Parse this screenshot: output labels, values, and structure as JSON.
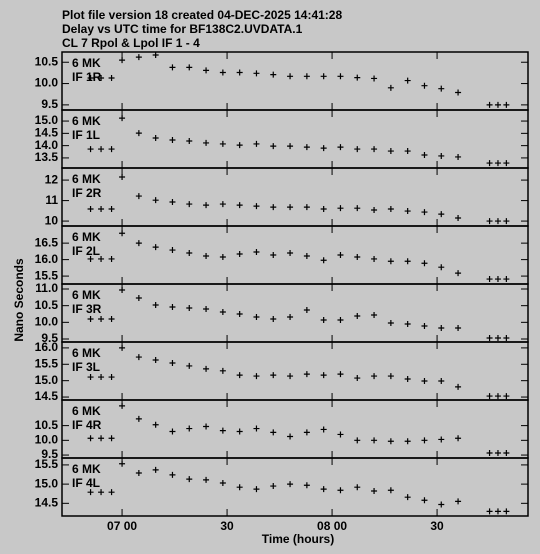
{
  "header": [
    "Plot file version 18  created 04-DEC-2025 14:41:28",
    "Delay vs UTC time for BF138C2.UVDATA.1",
    "CL 7  Rpol & Lpol  IF 1 - 4"
  ],
  "ylabel": "Nano Seconds",
  "xlabel": "Time (hours)",
  "xlim": [
    6.714,
    8.933
  ],
  "xticks": [
    {
      "value": 7.0,
      "label": "07 00"
    },
    {
      "value": 7.5,
      "label": "30"
    },
    {
      "value": 8.0,
      "label": "08 00"
    },
    {
      "value": 8.5,
      "label": "30"
    }
  ],
  "chart_data": [
    {
      "type": "scatter",
      "station": "6 MK",
      "label": "IF 1R",
      "color": "#000000",
      "x": [
        6.85,
        6.9,
        6.95,
        7.0,
        7.08,
        7.16,
        7.24,
        7.32,
        7.4,
        7.48,
        7.56,
        7.64,
        7.72,
        7.8,
        7.88,
        7.96,
        8.04,
        8.12,
        8.2,
        8.28,
        8.36,
        8.44,
        8.52,
        8.6,
        8.75,
        8.79,
        8.83
      ],
      "values": [
        10.13,
        10.13,
        10.13,
        10.55,
        10.62,
        10.67,
        10.38,
        10.38,
        10.31,
        10.26,
        10.26,
        10.24,
        10.21,
        10.17,
        10.17,
        10.17,
        10.17,
        10.14,
        10.12,
        9.9,
        10.07,
        9.95,
        9.88,
        9.79,
        9.5,
        9.5,
        9.5
      ],
      "ylim": [
        9.38,
        10.74
      ],
      "yticks": [
        10.5,
        {
          "value": 10.0,
          "label": "10.0"
        },
        9.5
      ]
    },
    {
      "type": "scatter",
      "station": "6 MK",
      "label": "IF 1L",
      "color": "#000000",
      "x": [
        6.85,
        6.9,
        6.95,
        7.0,
        7.08,
        7.16,
        7.24,
        7.32,
        7.4,
        7.48,
        7.56,
        7.64,
        7.72,
        7.8,
        7.88,
        7.96,
        8.04,
        8.12,
        8.2,
        8.28,
        8.36,
        8.44,
        8.52,
        8.6,
        8.75,
        8.79,
        8.83
      ],
      "values": [
        13.86,
        13.86,
        13.86,
        15.12,
        14.51,
        14.31,
        14.23,
        14.19,
        14.11,
        14.07,
        14.02,
        14.07,
        13.98,
        13.98,
        13.94,
        13.9,
        13.94,
        13.86,
        13.86,
        13.78,
        13.78,
        13.62,
        13.58,
        13.54,
        13.29,
        13.29,
        13.29
      ],
      "ylim": [
        13.09,
        15.45
      ],
      "yticks": [
        {
          "value": 15.0,
          "label": "15.0"
        },
        14.5,
        {
          "value": 14.0,
          "label": "14.0"
        },
        13.5
      ]
    },
    {
      "type": "scatter",
      "station": "6 MK",
      "label": "IF 2R",
      "color": "#000000",
      "x": [
        6.85,
        6.9,
        6.95,
        7.0,
        7.08,
        7.16,
        7.24,
        7.32,
        7.4,
        7.48,
        7.56,
        7.64,
        7.72,
        7.8,
        7.88,
        7.96,
        8.04,
        8.12,
        8.2,
        8.28,
        8.36,
        8.44,
        8.52,
        8.6,
        8.75,
        8.79,
        8.83
      ],
      "values": [
        10.59,
        10.59,
        10.59,
        12.15,
        11.22,
        11.02,
        10.93,
        10.83,
        10.78,
        10.83,
        10.78,
        10.73,
        10.68,
        10.68,
        10.68,
        10.59,
        10.63,
        10.63,
        10.54,
        10.59,
        10.49,
        10.44,
        10.34,
        10.15,
        10.0,
        10.0,
        10.0
      ],
      "ylim": [
        9.76,
        12.59
      ],
      "yticks": [
        12,
        11,
        10
      ]
    },
    {
      "type": "scatter",
      "station": "6 MK",
      "label": "IF 2L",
      "color": "#000000",
      "x": [
        6.85,
        6.9,
        6.95,
        7.0,
        7.08,
        7.16,
        7.24,
        7.32,
        7.4,
        7.48,
        7.56,
        7.64,
        7.72,
        7.8,
        7.88,
        7.96,
        8.04,
        8.12,
        8.2,
        8.28,
        8.36,
        8.44,
        8.52,
        8.6,
        8.75,
        8.79,
        8.83
      ],
      "values": [
        16.02,
        16.02,
        16.02,
        16.8,
        16.5,
        16.38,
        16.29,
        16.2,
        16.11,
        16.08,
        16.17,
        16.23,
        16.14,
        16.2,
        16.11,
        15.98,
        16.14,
        16.08,
        16.02,
        15.95,
        15.95,
        15.89,
        15.77,
        15.59,
        15.41,
        15.41,
        15.41
      ],
      "ylim": [
        15.26,
        17.02
      ],
      "yticks": [
        16.5,
        {
          "value": 16.0,
          "label": "16.0"
        },
        15.5
      ]
    },
    {
      "type": "scatter",
      "station": "6 MK",
      "label": "IF 3R",
      "color": "#000000",
      "x": [
        6.85,
        6.9,
        6.95,
        7.0,
        7.08,
        7.16,
        7.24,
        7.32,
        7.4,
        7.48,
        7.56,
        7.64,
        7.72,
        7.8,
        7.88,
        7.96,
        8.04,
        8.12,
        8.2,
        8.28,
        8.36,
        8.44,
        8.52,
        8.6,
        8.75,
        8.79,
        8.83
      ],
      "values": [
        10.1,
        10.1,
        10.1,
        10.97,
        10.73,
        10.52,
        10.46,
        10.43,
        10.4,
        10.31,
        10.25,
        10.16,
        10.1,
        10.16,
        10.37,
        10.07,
        10.07,
        10.19,
        10.22,
        9.98,
        9.95,
        9.89,
        9.83,
        9.83,
        9.53,
        9.53,
        9.53
      ],
      "ylim": [
        9.41,
        11.15
      ],
      "yticks": [
        {
          "value": 11.0,
          "label": "11.0"
        },
        10.5,
        {
          "value": 10.0,
          "label": "10.0"
        },
        9.5
      ]
    },
    {
      "type": "scatter",
      "station": "6 MK",
      "label": "IF 3L",
      "color": "#000000",
      "x": [
        6.85,
        6.9,
        6.95,
        7.0,
        7.08,
        7.16,
        7.24,
        7.32,
        7.4,
        7.48,
        7.56,
        7.64,
        7.72,
        7.8,
        7.88,
        7.96,
        8.04,
        8.12,
        8.2,
        8.28,
        8.36,
        8.44,
        8.52,
        8.6,
        8.75,
        8.79,
        8.83
      ],
      "values": [
        15.11,
        15.11,
        15.11,
        16.0,
        15.72,
        15.63,
        15.54,
        15.45,
        15.36,
        15.3,
        15.17,
        15.14,
        15.17,
        15.14,
        15.2,
        15.17,
        15.2,
        15.08,
        15.14,
        15.14,
        15.05,
        14.99,
        14.99,
        14.81,
        14.53,
        14.53,
        14.53
      ],
      "ylim": [
        14.41,
        16.18
      ],
      "yticks": [
        {
          "value": 16.0,
          "label": "16.0"
        },
        15.5,
        {
          "value": 15.0,
          "label": "15.0"
        },
        14.5
      ]
    },
    {
      "type": "scatter",
      "station": "6 MK",
      "label": "IF 4R",
      "color": "#000000",
      "x": [
        6.85,
        6.9,
        6.95,
        7.0,
        7.08,
        7.16,
        7.24,
        7.32,
        7.4,
        7.48,
        7.56,
        7.64,
        7.72,
        7.8,
        7.88,
        7.96,
        8.04,
        8.12,
        8.2,
        8.28,
        8.36,
        8.44,
        8.52,
        8.6,
        8.75,
        8.79,
        8.83
      ],
      "values": [
        10.07,
        10.07,
        10.07,
        11.17,
        10.73,
        10.53,
        10.3,
        10.4,
        10.47,
        10.33,
        10.3,
        10.4,
        10.27,
        10.13,
        10.27,
        10.37,
        10.2,
        10.0,
        10.0,
        9.97,
        9.97,
        10.0,
        10.03,
        10.07,
        9.57,
        9.57,
        9.57
      ],
      "ylim": [
        9.4,
        11.37
      ],
      "yticks": [
        10.5,
        {
          "value": 10.0,
          "label": "10.0"
        },
        9.5
      ]
    },
    {
      "type": "scatter",
      "station": "6 MK",
      "label": "IF 4L",
      "color": "#000000",
      "x": [
        6.85,
        6.9,
        6.95,
        7.0,
        7.08,
        7.16,
        7.24,
        7.32,
        7.4,
        7.48,
        7.56,
        7.64,
        7.72,
        7.8,
        7.88,
        7.96,
        8.04,
        8.12,
        8.2,
        8.28,
        8.36,
        8.44,
        8.52,
        8.6,
        8.75,
        8.79,
        8.83
      ],
      "values": [
        14.79,
        14.79,
        14.79,
        15.53,
        15.29,
        15.37,
        15.24,
        15.13,
        15.11,
        15.03,
        14.92,
        14.87,
        14.95,
        15.0,
        14.97,
        14.87,
        14.84,
        14.92,
        14.82,
        14.84,
        14.66,
        14.58,
        14.47,
        14.55,
        14.29,
        14.29,
        14.29
      ],
      "ylim": [
        14.17,
        15.68
      ],
      "yticks": [
        15.5,
        {
          "value": 15.0,
          "label": "15.0"
        },
        14.5
      ]
    }
  ]
}
